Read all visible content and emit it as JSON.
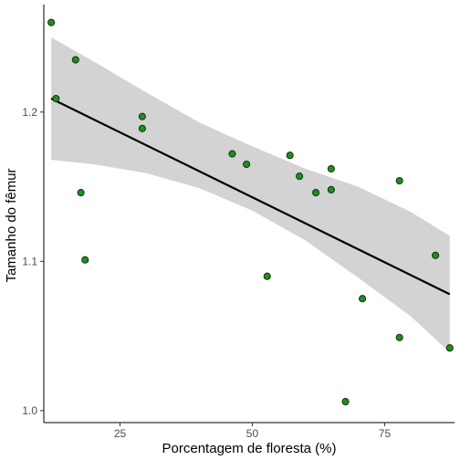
{
  "chart_data": {
    "type": "scatter",
    "title": "",
    "xlabel": "Porcentagem de floresta (%)",
    "ylabel": "Tamanho do fêmur",
    "xlim": [
      10.6,
      88.2
    ],
    "ylim": [
      0.992,
      1.272
    ],
    "x_ticks": [
      {
        "value": 25,
        "label": "25"
      },
      {
        "value": 50,
        "label": "50"
      },
      {
        "value": 75,
        "label": "75"
      }
    ],
    "y_ticks": [
      {
        "value": 1.0,
        "label": "1.0"
      },
      {
        "value": 1.1,
        "label": "1.1"
      },
      {
        "value": 1.2,
        "label": "1.2"
      }
    ],
    "grid": false,
    "legend": "none",
    "points": [
      {
        "x": 12.0,
        "y": 1.26
      },
      {
        "x": 12.9,
        "y": 1.209
      },
      {
        "x": 16.6,
        "y": 1.235
      },
      {
        "x": 17.6,
        "y": 1.146
      },
      {
        "x": 18.4,
        "y": 1.101
      },
      {
        "x": 29.2,
        "y": 1.197
      },
      {
        "x": 29.2,
        "y": 1.189
      },
      {
        "x": 46.2,
        "y": 1.172
      },
      {
        "x": 48.9,
        "y": 1.165
      },
      {
        "x": 52.8,
        "y": 1.09
      },
      {
        "x": 57.1,
        "y": 1.171
      },
      {
        "x": 58.9,
        "y": 1.157
      },
      {
        "x": 62.0,
        "y": 1.146
      },
      {
        "x": 64.9,
        "y": 1.162
      },
      {
        "x": 64.9,
        "y": 1.148
      },
      {
        "x": 67.6,
        "y": 1.006
      },
      {
        "x": 70.8,
        "y": 1.075
      },
      {
        "x": 77.8,
        "y": 1.154
      },
      {
        "x": 77.8,
        "y": 1.049
      },
      {
        "x": 84.6,
        "y": 1.104
      },
      {
        "x": 87.3,
        "y": 1.042
      }
    ],
    "trend_line": {
      "x": [
        12.0,
        87.3
      ],
      "y": [
        1.209,
        1.078
      ]
    },
    "confidence_band": [
      {
        "x": 12.0,
        "lower": 1.168,
        "upper": 1.25
      },
      {
        "x": 20.0,
        "lower": 1.165,
        "upper": 1.234
      },
      {
        "x": 30.0,
        "lower": 1.159,
        "upper": 1.213
      },
      {
        "x": 40.0,
        "lower": 1.149,
        "upper": 1.193
      },
      {
        "x": 50.0,
        "lower": 1.134,
        "upper": 1.177
      },
      {
        "x": 60.0,
        "lower": 1.114,
        "upper": 1.162
      },
      {
        "x": 70.0,
        "lower": 1.089,
        "upper": 1.15
      },
      {
        "x": 80.0,
        "lower": 1.063,
        "upper": 1.133
      },
      {
        "x": 87.3,
        "lower": 1.039,
        "upper": 1.117
      }
    ],
    "colors": {
      "point_fill": "#228b22",
      "point_stroke": "#0b2a0b",
      "line": "#000000",
      "band": "#d3d3d3",
      "axis": "#000000",
      "tick_label": "#4d4d4d"
    }
  }
}
